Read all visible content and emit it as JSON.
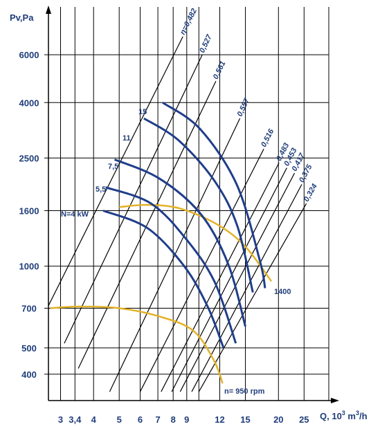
{
  "chart_data": {
    "type": "line",
    "ylabel": "Pv,Pa",
    "xlabel": "Q, 10³m³/h",
    "x_scale": "log",
    "y_scale": "log",
    "xlim": [
      2.7,
      31
    ],
    "ylim": [
      320,
      9000
    ],
    "grid": true,
    "x_ticks": [
      {
        "v": 3,
        "label": "3"
      },
      {
        "v": 3.4,
        "label": "3,4"
      },
      {
        "v": 4,
        "label": "4"
      },
      {
        "v": 5,
        "label": "5"
      },
      {
        "v": 6,
        "label": "6"
      },
      {
        "v": 7,
        "label": "7"
      },
      {
        "v": 8,
        "label": "8"
      },
      {
        "v": 9,
        "label": "9"
      },
      {
        "v": 12,
        "label": "12"
      },
      {
        "v": 15,
        "label": "15"
      },
      {
        "v": 20,
        "label": "20"
      },
      {
        "v": 25,
        "label": "25"
      }
    ],
    "x_grid_extra": [
      10
    ],
    "y_ticks": [
      {
        "v": 400,
        "label": "400"
      },
      {
        "v": 500,
        "label": "500"
      },
      {
        "v": 700,
        "label": "700"
      },
      {
        "v": 1000,
        "label": "1000"
      },
      {
        "v": 1600,
        "label": "1600"
      },
      {
        "v": 2500,
        "label": "2500"
      },
      {
        "v": 4000,
        "label": "4000"
      },
      {
        "v": 6000,
        "label": "6000"
      }
    ],
    "colors": {
      "grid": "#000000",
      "power": "#1f3d8a",
      "speed": "#e3b228",
      "text": "#1f3d7a"
    },
    "power_series": [
      {
        "name": "N=4 kW",
        "points": [
          [
            4.35,
            1600
          ],
          [
            6.4,
            1380
          ],
          [
            8.8,
            1000
          ],
          [
            10.8,
            710
          ],
          [
            12.4,
            500
          ]
        ]
      },
      {
        "name": "5,5",
        "points": [
          [
            4.45,
            1950
          ],
          [
            6.6,
            1700
          ],
          [
            9.0,
            1250
          ],
          [
            11.5,
            870
          ],
          [
            13.8,
            520
          ]
        ]
      },
      {
        "name": "7,5",
        "points": [
          [
            4.8,
            2470
          ],
          [
            7.1,
            2100
          ],
          [
            10.2,
            1550
          ],
          [
            12.9,
            1020
          ],
          [
            15.0,
            600
          ]
        ]
      },
      {
        "name": "11",
        "points": [
          [
            6.2,
            3500
          ],
          [
            8.4,
            2900
          ],
          [
            11.5,
            2050
          ],
          [
            14.0,
            1400
          ],
          [
            16.0,
            800
          ]
        ]
      },
      {
        "name": "15",
        "points": [
          [
            7.3,
            4000
          ],
          [
            10.1,
            3200
          ],
          [
            13.9,
            2000
          ],
          [
            17.0,
            1050
          ],
          [
            17.8,
            830
          ]
        ]
      }
    ],
    "speed_series": [
      {
        "name": "1400",
        "points": [
          [
            5.0,
            1650
          ],
          [
            6.4,
            1680
          ],
          [
            8.5,
            1630
          ],
          [
            11.8,
            1420
          ],
          [
            15.0,
            1180
          ],
          [
            18.8,
            880
          ]
        ]
      },
      {
        "name": "n= 950 rpm",
        "points": [
          [
            2.75,
            700
          ],
          [
            3.5,
            710
          ],
          [
            5.0,
            700
          ],
          [
            7.0,
            655
          ],
          [
            9.5,
            580
          ],
          [
            11.4,
            450
          ],
          [
            12.3,
            370
          ]
        ]
      }
    ],
    "efficiency_lines": [
      {
        "label": "η=0,482",
        "from": [
          2.7,
          715
        ],
        "to": [
          8.7,
          7000
        ]
      },
      {
        "label": "0,527",
        "from": [
          3.1,
          520
        ],
        "to": [
          10.3,
          6000
        ]
      },
      {
        "label": "0,561",
        "from": [
          3.5,
          420
        ],
        "to": [
          11.6,
          4800
        ]
      },
      {
        "label": "0,557",
        "from": [
          4.6,
          345
        ],
        "to": [
          14.3,
          3500
        ]
      },
      {
        "label": "0,516",
        "from": [
          6.0,
          345
        ],
        "to": [
          17.6,
          2700
        ]
      },
      {
        "label": "0,483",
        "from": [
          7.2,
          345
        ],
        "to": [
          20.1,
          2400
        ]
      },
      {
        "label": "0,453",
        "from": [
          7.9,
          345
        ],
        "to": [
          21.5,
          2300
        ]
      },
      {
        "label": "0,417",
        "from": [
          8.5,
          345
        ],
        "to": [
          23.0,
          2200
        ]
      },
      {
        "label": "0,375",
        "from": [
          9.4,
          345
        ],
        "to": [
          24.5,
          2000
        ]
      },
      {
        "label": "0,324",
        "from": [
          10.0,
          345
        ],
        "to": [
          25.5,
          1700
        ]
      }
    ],
    "annotations": {
      "power_4": "N=4 kW",
      "power_5_5": "5,5",
      "power_7_5": "7,5",
      "power_11": "11",
      "power_15": "15",
      "speed_1400": "1400",
      "speed_950": "n= 950 rpm"
    }
  }
}
